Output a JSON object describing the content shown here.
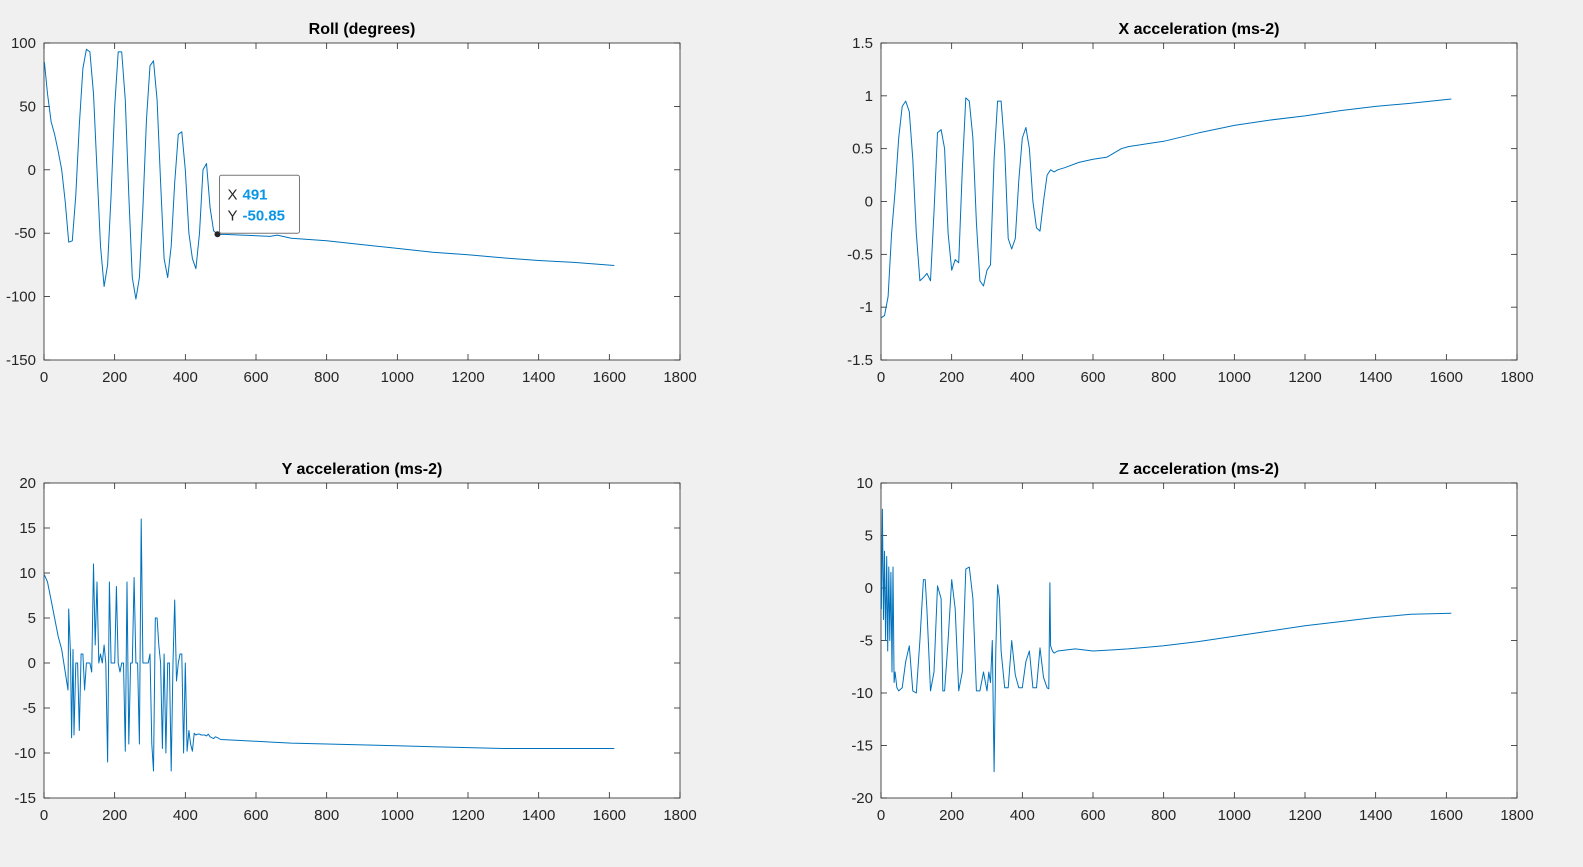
{
  "figure": {
    "background": "#f0f0f0",
    "line_color": "#0072bd",
    "datatip_color": "#0a96e6"
  },
  "chart_data": [
    {
      "type": "line",
      "title": "Roll (degrees)",
      "xlim": [
        0,
        1800
      ],
      "ylim": [
        -150,
        100
      ],
      "xticks": [
        0,
        200,
        400,
        600,
        800,
        1000,
        1200,
        1400,
        1600,
        1800
      ],
      "yticks": [
        -150,
        -100,
        -50,
        0,
        50,
        100
      ],
      "grid": false,
      "series": [
        {
          "x": [
            1,
            10,
            20,
            30,
            40,
            50,
            60,
            70,
            80,
            90,
            100,
            110,
            120,
            130,
            140,
            150,
            160,
            170,
            180,
            190,
            200,
            210,
            220,
            230,
            240,
            250,
            260,
            270,
            280,
            290,
            300,
            310,
            320,
            330,
            340,
            350,
            360,
            370,
            380,
            390,
            400,
            410,
            420,
            430,
            440,
            450,
            460,
            470,
            480,
            491,
            520,
            560,
            600,
            640,
            660,
            700,
            800,
            900,
            1000,
            1100,
            1200,
            1300,
            1400,
            1500,
            1614
          ],
          "y": [
            85,
            60,
            38,
            28,
            15,
            0,
            -25,
            -57,
            -56,
            -20,
            35,
            80,
            95,
            93,
            60,
            0,
            -60,
            -92,
            -75,
            -20,
            50,
            93,
            93,
            55,
            -20,
            -85,
            -102,
            -85,
            -30,
            40,
            82,
            86,
            55,
            -10,
            -70,
            -85,
            -60,
            -10,
            28,
            30,
            0,
            -50,
            -70,
            -78,
            -50,
            0,
            5,
            -30,
            -48,
            -50.85,
            -51,
            -51.5,
            -52,
            -52.5,
            -51.5,
            -54,
            -56,
            -59,
            -62,
            -65,
            -67,
            -69.5,
            -71.5,
            -73,
            -75.5
          ]
        }
      ],
      "datatip": {
        "x_label": "X",
        "x_value": "491",
        "y_label": "Y",
        "y_value": "-50.85",
        "x": 491,
        "y": -50.85
      }
    },
    {
      "type": "line",
      "title": "X acceleration (ms-2)",
      "xlim": [
        0,
        1800
      ],
      "ylim": [
        -1.5,
        1.5
      ],
      "xticks": [
        0,
        200,
        400,
        600,
        800,
        1000,
        1200,
        1400,
        1600,
        1800
      ],
      "yticks": [
        -1.5,
        -1,
        -0.5,
        0,
        0.5,
        1,
        1.5
      ],
      "grid": false,
      "series": [
        {
          "x": [
            1,
            10,
            20,
            30,
            40,
            50,
            60,
            70,
            80,
            90,
            100,
            110,
            120,
            130,
            140,
            150,
            160,
            170,
            180,
            190,
            200,
            210,
            220,
            230,
            240,
            250,
            260,
            270,
            280,
            290,
            300,
            310,
            320,
            330,
            340,
            350,
            360,
            370,
            380,
            390,
            400,
            410,
            420,
            430,
            440,
            450,
            460,
            470,
            480,
            490,
            500,
            520,
            560,
            600,
            640,
            680,
            700,
            760,
            800,
            900,
            1000,
            1100,
            1200,
            1300,
            1400,
            1500,
            1614
          ],
          "y": [
            -1.1,
            -1.08,
            -0.9,
            -0.3,
            0.1,
            0.6,
            0.9,
            0.95,
            0.85,
            0.4,
            -0.3,
            -0.75,
            -0.72,
            -0.68,
            -0.75,
            -0.1,
            0.65,
            0.68,
            0.5,
            -0.3,
            -0.65,
            -0.55,
            -0.58,
            0.3,
            0.98,
            0.95,
            0.6,
            -0.2,
            -0.75,
            -0.8,
            -0.65,
            -0.6,
            0.4,
            0.95,
            0.95,
            0.5,
            -0.35,
            -0.45,
            -0.35,
            0.2,
            0.6,
            0.7,
            0.5,
            0.0,
            -0.25,
            -0.28,
            0.0,
            0.25,
            0.3,
            0.28,
            0.3,
            0.32,
            0.37,
            0.4,
            0.42,
            0.5,
            0.52,
            0.55,
            0.57,
            0.65,
            0.72,
            0.77,
            0.81,
            0.86,
            0.9,
            0.93,
            0.97
          ]
        }
      ]
    },
    {
      "type": "line",
      "title": "Y acceleration (ms-2)",
      "xlim": [
        0,
        1800
      ],
      "ylim": [
        -15,
        20
      ],
      "xticks": [
        0,
        200,
        400,
        600,
        800,
        1000,
        1200,
        1400,
        1600,
        1800
      ],
      "yticks": [
        -15,
        -10,
        -5,
        0,
        5,
        10,
        15,
        20
      ],
      "grid": false,
      "series": [
        {
          "x": [
            1,
            10,
            20,
            30,
            40,
            50,
            60,
            68,
            70,
            75,
            78,
            82,
            85,
            90,
            95,
            100,
            105,
            110,
            115,
            120,
            125,
            130,
            135,
            140,
            145,
            150,
            155,
            160,
            165,
            170,
            175,
            180,
            185,
            190,
            195,
            200,
            205,
            210,
            215,
            220,
            225,
            230,
            235,
            240,
            245,
            250,
            255,
            260,
            265,
            270,
            275,
            280,
            285,
            290,
            295,
            300,
            305,
            310,
            315,
            320,
            325,
            330,
            335,
            340,
            345,
            350,
            355,
            360,
            365,
            370,
            375,
            380,
            385,
            390,
            395,
            400,
            405,
            410,
            415,
            420,
            425,
            430,
            435,
            440,
            445,
            450,
            455,
            460,
            465,
            470,
            475,
            480,
            485,
            491,
            500,
            550,
            600,
            650,
            700,
            800,
            900,
            1000,
            1100,
            1200,
            1300,
            1400,
            1500,
            1614
          ],
          "y": [
            9.8,
            9,
            7,
            5,
            3,
            1.5,
            -1,
            -3,
            6,
            1,
            -8.3,
            1.5,
            -8,
            0,
            0,
            -7.5,
            1,
            1,
            -3,
            0,
            0,
            0,
            -1,
            11,
            2,
            9,
            0,
            1,
            0,
            2,
            0,
            -11,
            9,
            0,
            0,
            0,
            8.5,
            0,
            -1,
            0,
            0,
            -9.8,
            9,
            -9,
            0,
            0,
            9.5,
            0,
            0,
            -9,
            16,
            0,
            0,
            0,
            0,
            1,
            -9,
            -12,
            5,
            5,
            2,
            0,
            -9.5,
            1,
            -10,
            0,
            0,
            -12,
            0,
            7,
            -2,
            0,
            1,
            1,
            -10,
            0,
            -9.8,
            -7.5,
            -9,
            -9.8,
            -7.8,
            -8,
            -7.9,
            -7.9,
            -8,
            -8,
            -8,
            -8.1,
            -7.9,
            -8.2,
            -8.3,
            -8.4,
            -8.2,
            -8.3,
            -8.5,
            -8.6,
            -8.7,
            -8.8,
            -8.9,
            -9.0,
            -9.1,
            -9.2,
            -9.3,
            -9.4,
            -9.5,
            -9.5,
            -9.5,
            -9.5
          ]
        }
      ]
    },
    {
      "type": "line",
      "title": "Z acceleration (ms-2)",
      "xlim": [
        0,
        1800
      ],
      "ylim": [
        -20,
        10
      ],
      "xticks": [
        0,
        200,
        400,
        600,
        800,
        1000,
        1200,
        1400,
        1600,
        1800
      ],
      "yticks": [
        -20,
        -15,
        -10,
        -5,
        0,
        5,
        10
      ],
      "grid": false,
      "series": [
        {
          "x": [
            1,
            4,
            7,
            10,
            13,
            16,
            19,
            22,
            25,
            28,
            31,
            34,
            37,
            40,
            45,
            50,
            60,
            70,
            80,
            90,
            100,
            110,
            120,
            125,
            130,
            140,
            150,
            160,
            170,
            175,
            180,
            190,
            200,
            210,
            220,
            230,
            240,
            250,
            260,
            270,
            280,
            290,
            300,
            305,
            310,
            315,
            320,
            325,
            330,
            335,
            340,
            350,
            360,
            370,
            380,
            390,
            400,
            410,
            420,
            430,
            440,
            450,
            460,
            470,
            475,
            478,
            480,
            485,
            490,
            500,
            550,
            600,
            650,
            700,
            800,
            900,
            1000,
            1100,
            1200,
            1300,
            1400,
            1500,
            1614
          ],
          "y": [
            -2,
            7.5,
            -3,
            3.5,
            -5,
            3,
            -6,
            2,
            -5,
            1.5,
            -8,
            2,
            -9,
            -8,
            -9.5,
            -9.8,
            -9.5,
            -7,
            -5.5,
            -9.8,
            -10,
            -5,
            0.8,
            0.8,
            -2,
            -9.8,
            -8,
            0.2,
            -1,
            -9.8,
            -9.8,
            -5,
            0.8,
            -2,
            -9.8,
            -8,
            1.8,
            2,
            -1,
            -9.8,
            -9.8,
            -8,
            -9.8,
            -8,
            -9,
            -5,
            -17.5,
            -6,
            0.3,
            -1,
            -6,
            -9.5,
            -9.5,
            -5,
            -8.3,
            -9.5,
            -9.5,
            -7,
            -6,
            -9.5,
            -9.5,
            -5.7,
            -8.5,
            -9.5,
            -9.6,
            0.5,
            -5.5,
            -6,
            -6.2,
            -6,
            -5.8,
            -6.0,
            -5.9,
            -5.8,
            -5.5,
            -5.1,
            -4.6,
            -4.1,
            -3.6,
            -3.2,
            -2.8,
            -2.5,
            -2.4
          ]
        }
      ]
    }
  ]
}
